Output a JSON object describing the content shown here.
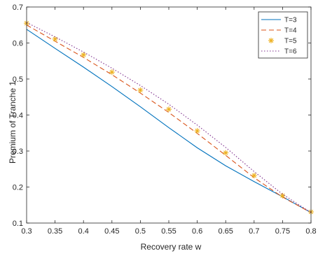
{
  "chart_data": {
    "type": "line",
    "title": "",
    "xlabel": "Recovery rate w",
    "ylabel": "Premium of Tranche 1",
    "xlim": [
      0.3,
      0.8
    ],
    "ylim": [
      0.1,
      0.7
    ],
    "xticks": [
      "0.3",
      "0.35",
      "0.4",
      "0.45",
      "0.5",
      "0.55",
      "0.6",
      "0.65",
      "0.7",
      "0.75",
      "0.8"
    ],
    "yticks": [
      "0.1",
      "0.2",
      "0.3",
      "0.4",
      "0.5",
      "0.6",
      "0.7"
    ],
    "x": [
      0.3,
      0.35,
      0.4,
      0.45,
      0.5,
      0.55,
      0.6,
      0.65,
      0.7,
      0.75,
      0.8
    ],
    "series": [
      {
        "name": "T=3",
        "style": "solid",
        "marker": "none",
        "color": "#0072BD",
        "values": [
          0.638,
          0.585,
          0.533,
          0.479,
          0.423,
          0.365,
          0.309,
          0.259,
          0.215,
          0.173,
          0.129
        ]
      },
      {
        "name": "T=4",
        "style": "dashed",
        "marker": "none",
        "color": "#D95319",
        "values": [
          0.65,
          0.605,
          0.56,
          0.512,
          0.461,
          0.407,
          0.349,
          0.288,
          0.226,
          0.172,
          0.129
        ]
      },
      {
        "name": "T=5",
        "style": "none",
        "marker": "asterisk",
        "color": "#EDB120",
        "values": [
          0.655,
          0.611,
          0.567,
          0.519,
          0.469,
          0.416,
          0.356,
          0.295,
          0.232,
          0.176,
          0.131
        ]
      },
      {
        "name": "T=6",
        "style": "dotted",
        "marker": "none",
        "color": "#7E2F8E",
        "values": [
          0.657,
          0.617,
          0.575,
          0.53,
          0.482,
          0.43,
          0.372,
          0.31,
          0.243,
          0.18,
          0.129
        ]
      }
    ],
    "grid": false,
    "legend": "top-right"
  }
}
